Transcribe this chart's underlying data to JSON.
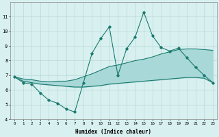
{
  "x": [
    0,
    1,
    2,
    3,
    4,
    5,
    6,
    7,
    8,
    9,
    10,
    11,
    12,
    13,
    14,
    15,
    16,
    17,
    18,
    19,
    20,
    21,
    22,
    23
  ],
  "line_main": [
    6.9,
    6.5,
    6.4,
    5.8,
    5.3,
    5.1,
    4.7,
    4.5,
    6.5,
    8.5,
    9.5,
    10.3,
    7.0,
    8.8,
    9.6,
    11.3,
    9.7,
    8.9,
    8.65,
    8.85,
    8.2,
    7.55,
    7.0,
    6.5
  ],
  "line_upper": [
    6.9,
    6.75,
    6.7,
    6.6,
    6.55,
    6.6,
    6.6,
    6.7,
    6.9,
    7.1,
    7.35,
    7.6,
    7.7,
    7.85,
    8.0,
    8.1,
    8.25,
    8.45,
    8.6,
    8.75,
    8.8,
    8.8,
    8.75,
    8.7
  ],
  "line_lower": [
    6.9,
    6.6,
    6.5,
    6.4,
    6.35,
    6.3,
    6.25,
    6.2,
    6.2,
    6.25,
    6.3,
    6.4,
    6.45,
    6.5,
    6.55,
    6.6,
    6.65,
    6.7,
    6.75,
    6.8,
    6.85,
    6.85,
    6.8,
    6.5
  ],
  "color_main": "#1a7a6e",
  "color_fill": "#a8d8d8",
  "color_lines": "#1a7a6e",
  "bg_color": "#d8f0f0",
  "grid_color": "#b8d8d8",
  "xlabel": "Humidex (Indice chaleur)",
  "ylim": [
    4,
    12
  ],
  "xlim": [
    -0.5,
    23.5
  ],
  "yticks": [
    4,
    5,
    6,
    7,
    8,
    9,
    10,
    11
  ],
  "xticks": [
    0,
    1,
    2,
    3,
    4,
    5,
    6,
    7,
    8,
    9,
    10,
    11,
    12,
    13,
    14,
    15,
    16,
    17,
    18,
    19,
    20,
    21,
    22,
    23
  ]
}
